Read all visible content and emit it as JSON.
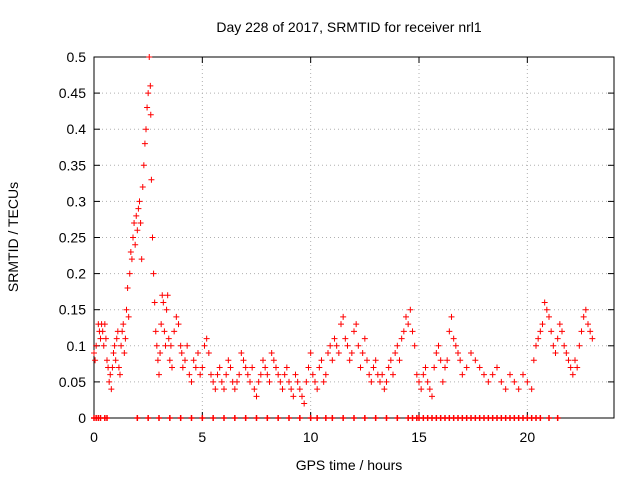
{
  "chart_data": {
    "type": "scatter",
    "title": "Day 228 of 2017, SRMTID for receiver nrl1",
    "xlabel": "GPS time / hours",
    "ylabel": "SRMTID / TECUs",
    "xlim": [
      0,
      24
    ],
    "ylim": [
      0,
      0.5
    ],
    "xticks": [
      0,
      5,
      10,
      15,
      20
    ],
    "xtick_labels": [
      "0",
      "5",
      "10",
      "15",
      "20"
    ],
    "yticks": [
      0,
      0.05,
      0.1,
      0.15,
      0.2,
      0.25,
      0.3,
      0.35,
      0.4,
      0.45,
      0.5
    ],
    "ytick_labels": [
      "0",
      "0.05",
      "0.1",
      "0.15",
      "0.2",
      "0.25",
      "0.3",
      "0.35",
      "0.4",
      "0.45",
      "0.5"
    ],
    "grid": true,
    "marker": "+",
    "color": "#ff0000",
    "series": [
      {
        "name": "SRMTID",
        "points": [
          [
            0.0,
            0.09
          ],
          [
            0.05,
            0.08
          ],
          [
            0.1,
            0.1
          ],
          [
            0.2,
            0.13
          ],
          [
            0.25,
            0.12
          ],
          [
            0.3,
            0.11
          ],
          [
            0.35,
            0.13
          ],
          [
            0.4,
            0.12
          ],
          [
            0.45,
            0.1
          ],
          [
            0.5,
            0.13
          ],
          [
            0.55,
            0.11
          ],
          [
            0.6,
            0.08
          ],
          [
            0.65,
            0.07
          ],
          [
            0.7,
            0.05
          ],
          [
            0.75,
            0.06
          ],
          [
            0.8,
            0.04
          ],
          [
            0.85,
            0.07
          ],
          [
            0.9,
            0.09
          ],
          [
            0.95,
            0.1
          ],
          [
            1.0,
            0.08
          ],
          [
            1.05,
            0.11
          ],
          [
            1.1,
            0.12
          ],
          [
            1.15,
            0.07
          ],
          [
            1.2,
            0.06
          ],
          [
            1.25,
            0.1
          ],
          [
            1.3,
            0.12
          ],
          [
            1.35,
            0.13
          ],
          [
            1.4,
            0.09
          ],
          [
            1.45,
            0.11
          ],
          [
            1.5,
            0.15
          ],
          [
            1.55,
            0.18
          ],
          [
            1.6,
            0.14
          ],
          [
            1.65,
            0.2
          ],
          [
            1.7,
            0.23
          ],
          [
            1.75,
            0.22
          ],
          [
            1.8,
            0.25
          ],
          [
            1.85,
            0.27
          ],
          [
            1.9,
            0.24
          ],
          [
            1.95,
            0.28
          ],
          [
            2.0,
            0.26
          ],
          [
            2.05,
            0.29
          ],
          [
            2.1,
            0.3
          ],
          [
            2.15,
            0.27
          ],
          [
            2.2,
            0.22
          ],
          [
            2.25,
            0.32
          ],
          [
            2.3,
            0.35
          ],
          [
            2.35,
            0.38
          ],
          [
            2.4,
            0.4
          ],
          [
            2.45,
            0.43
          ],
          [
            2.5,
            0.45
          ],
          [
            2.55,
            0.5
          ],
          [
            2.6,
            0.46
          ],
          [
            2.62,
            0.42
          ],
          [
            2.65,
            0.33
          ],
          [
            2.7,
            0.25
          ],
          [
            2.75,
            0.2
          ],
          [
            2.8,
            0.16
          ],
          [
            2.85,
            0.12
          ],
          [
            2.9,
            0.1
          ],
          [
            2.95,
            0.08
          ],
          [
            3.0,
            0.06
          ],
          [
            3.05,
            0.09
          ],
          [
            3.1,
            0.13
          ],
          [
            3.15,
            0.17
          ],
          [
            3.2,
            0.16
          ],
          [
            3.25,
            0.12
          ],
          [
            3.3,
            0.1
          ],
          [
            3.35,
            0.15
          ],
          [
            3.4,
            0.17
          ],
          [
            3.45,
            0.11
          ],
          [
            3.5,
            0.08
          ],
          [
            3.55,
            0.1
          ],
          [
            3.6,
            0.07
          ],
          [
            3.7,
            0.12
          ],
          [
            3.8,
            0.14
          ],
          [
            3.9,
            0.13
          ],
          [
            4.0,
            0.1
          ],
          [
            4.05,
            0.09
          ],
          [
            4.1,
            0.07
          ],
          [
            4.2,
            0.08
          ],
          [
            4.3,
            0.1
          ],
          [
            4.4,
            0.06
          ],
          [
            4.5,
            0.05
          ],
          [
            4.6,
            0.08
          ],
          [
            4.7,
            0.07
          ],
          [
            4.8,
            0.09
          ],
          [
            4.9,
            0.06
          ],
          [
            5.0,
            0.07
          ],
          [
            5.1,
            0.1
          ],
          [
            5.2,
            0.11
          ],
          [
            5.3,
            0.09
          ],
          [
            5.4,
            0.06
          ],
          [
            5.5,
            0.05
          ],
          [
            5.6,
            0.04
          ],
          [
            5.7,
            0.06
          ],
          [
            5.8,
            0.07
          ],
          [
            5.9,
            0.05
          ],
          [
            6.0,
            0.04
          ],
          [
            6.1,
            0.06
          ],
          [
            6.2,
            0.08
          ],
          [
            6.3,
            0.07
          ],
          [
            6.4,
            0.05
          ],
          [
            6.5,
            0.04
          ],
          [
            6.6,
            0.05
          ],
          [
            6.7,
            0.06
          ],
          [
            6.8,
            0.09
          ],
          [
            6.9,
            0.08
          ],
          [
            7.0,
            0.07
          ],
          [
            7.1,
            0.06
          ],
          [
            7.2,
            0.05
          ],
          [
            7.3,
            0.07
          ],
          [
            7.4,
            0.04
          ],
          [
            7.5,
            0.03
          ],
          [
            7.6,
            0.05
          ],
          [
            7.7,
            0.06
          ],
          [
            7.8,
            0.08
          ],
          [
            7.9,
            0.07
          ],
          [
            8.0,
            0.06
          ],
          [
            8.1,
            0.05
          ],
          [
            8.2,
            0.09
          ],
          [
            8.3,
            0.08
          ],
          [
            8.4,
            0.07
          ],
          [
            8.5,
            0.06
          ],
          [
            8.6,
            0.05
          ],
          [
            8.7,
            0.04
          ],
          [
            8.8,
            0.06
          ],
          [
            8.9,
            0.07
          ],
          [
            9.0,
            0.05
          ],
          [
            9.1,
            0.04
          ],
          [
            9.2,
            0.03
          ],
          [
            9.3,
            0.06
          ],
          [
            9.4,
            0.05
          ],
          [
            9.5,
            0.04
          ],
          [
            9.6,
            0.03
          ],
          [
            9.7,
            0.02
          ],
          [
            9.8,
            0.05
          ],
          [
            9.9,
            0.07
          ],
          [
            10.0,
            0.09
          ],
          [
            10.1,
            0.06
          ],
          [
            10.2,
            0.05
          ],
          [
            10.3,
            0.04
          ],
          [
            10.4,
            0.07
          ],
          [
            10.5,
            0.08
          ],
          [
            10.6,
            0.05
          ],
          [
            10.7,
            0.06
          ],
          [
            10.8,
            0.09
          ],
          [
            10.9,
            0.1
          ],
          [
            11.0,
            0.08
          ],
          [
            11.1,
            0.11
          ],
          [
            11.2,
            0.1
          ],
          [
            11.3,
            0.09
          ],
          [
            11.4,
            0.13
          ],
          [
            11.5,
            0.14
          ],
          [
            11.6,
            0.11
          ],
          [
            11.7,
            0.1
          ],
          [
            11.8,
            0.08
          ],
          [
            11.9,
            0.09
          ],
          [
            12.0,
            0.12
          ],
          [
            12.1,
            0.13
          ],
          [
            12.2,
            0.1
          ],
          [
            12.3,
            0.07
          ],
          [
            12.4,
            0.09
          ],
          [
            12.5,
            0.11
          ],
          [
            12.6,
            0.08
          ],
          [
            12.7,
            0.06
          ],
          [
            12.8,
            0.05
          ],
          [
            12.9,
            0.07
          ],
          [
            13.0,
            0.08
          ],
          [
            13.1,
            0.06
          ],
          [
            13.2,
            0.05
          ],
          [
            13.3,
            0.06
          ],
          [
            13.4,
            0.04
          ],
          [
            13.5,
            0.05
          ],
          [
            13.6,
            0.07
          ],
          [
            13.7,
            0.08
          ],
          [
            13.8,
            0.06
          ],
          [
            13.9,
            0.09
          ],
          [
            14.0,
            0.1
          ],
          [
            14.1,
            0.08
          ],
          [
            14.2,
            0.11
          ],
          [
            14.3,
            0.12
          ],
          [
            14.4,
            0.14
          ],
          [
            14.5,
            0.13
          ],
          [
            14.6,
            0.15
          ],
          [
            14.7,
            0.12
          ],
          [
            14.8,
            0.1
          ],
          [
            14.9,
            0.06
          ],
          [
            15.0,
            0.05
          ],
          [
            15.1,
            0.04
          ],
          [
            15.2,
            0.06
          ],
          [
            15.3,
            0.07
          ],
          [
            15.4,
            0.05
          ],
          [
            15.5,
            0.04
          ],
          [
            15.6,
            0.03
          ],
          [
            15.7,
            0.07
          ],
          [
            15.8,
            0.09
          ],
          [
            15.9,
            0.1
          ],
          [
            16.0,
            0.08
          ],
          [
            16.1,
            0.05
          ],
          [
            16.2,
            0.07
          ],
          [
            16.3,
            0.08
          ],
          [
            16.4,
            0.12
          ],
          [
            16.5,
            0.14
          ],
          [
            16.6,
            0.11
          ],
          [
            16.7,
            0.1
          ],
          [
            16.8,
            0.09
          ],
          [
            16.9,
            0.08
          ],
          [
            17.0,
            0.06
          ],
          [
            17.2,
            0.07
          ],
          [
            17.4,
            0.09
          ],
          [
            17.6,
            0.08
          ],
          [
            17.8,
            0.07
          ],
          [
            18.0,
            0.06
          ],
          [
            18.2,
            0.05
          ],
          [
            18.4,
            0.06
          ],
          [
            18.6,
            0.07
          ],
          [
            18.8,
            0.05
          ],
          [
            19.0,
            0.04
          ],
          [
            19.2,
            0.06
          ],
          [
            19.4,
            0.05
          ],
          [
            19.6,
            0.04
          ],
          [
            19.8,
            0.06
          ],
          [
            20.0,
            0.05
          ],
          [
            20.2,
            0.04
          ],
          [
            20.3,
            0.08
          ],
          [
            20.4,
            0.1
          ],
          [
            20.5,
            0.11
          ],
          [
            20.6,
            0.12
          ],
          [
            20.7,
            0.13
          ],
          [
            20.8,
            0.16
          ],
          [
            20.9,
            0.15
          ],
          [
            21.0,
            0.14
          ],
          [
            21.1,
            0.12
          ],
          [
            21.2,
            0.1
          ],
          [
            21.3,
            0.09
          ],
          [
            21.4,
            0.11
          ],
          [
            21.5,
            0.13
          ],
          [
            21.6,
            0.12
          ],
          [
            21.7,
            0.1
          ],
          [
            21.8,
            0.09
          ],
          [
            21.9,
            0.08
          ],
          [
            22.0,
            0.07
          ],
          [
            22.1,
            0.06
          ],
          [
            22.2,
            0.08
          ],
          [
            22.3,
            0.07
          ],
          [
            22.4,
            0.1
          ],
          [
            22.5,
            0.12
          ],
          [
            22.6,
            0.14
          ],
          [
            22.7,
            0.15
          ],
          [
            22.8,
            0.13
          ],
          [
            22.9,
            0.12
          ],
          [
            23.0,
            0.11
          ]
        ],
        "zero_points_x": [
          0.0,
          0.1,
          0.2,
          0.3,
          0.5,
          0.6,
          2.0,
          2.5,
          3.0,
          3.5,
          4.0,
          4.5,
          5.0,
          5.5,
          6.0,
          6.5,
          7.0,
          7.5,
          8.0,
          8.5,
          9.0,
          9.5,
          10.0,
          10.3,
          10.7,
          11.0,
          11.5,
          12.0,
          12.5,
          13.0,
          13.5,
          14.0,
          14.5,
          14.7,
          14.9,
          15.0,
          15.2,
          15.4,
          15.6,
          15.8,
          16.0,
          16.2,
          16.4,
          16.6,
          16.8,
          17.0,
          17.2,
          17.4,
          17.6,
          17.8,
          18.0,
          18.2,
          18.4,
          18.6,
          18.8,
          19.0,
          19.2,
          19.4,
          19.6,
          19.8,
          20.0,
          20.2,
          20.4,
          20.6,
          21.0,
          21.4
        ]
      }
    ]
  }
}
